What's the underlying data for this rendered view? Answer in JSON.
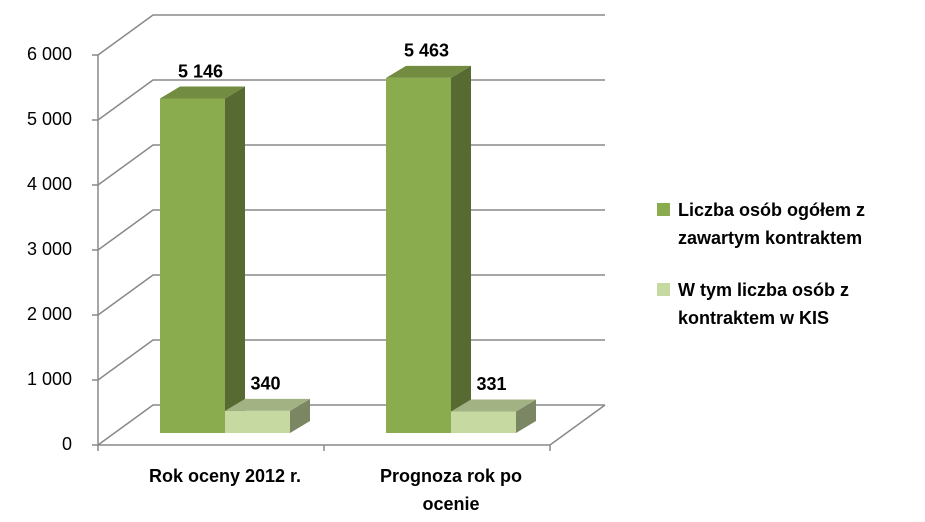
{
  "chart_data": {
    "type": "bar3d",
    "categories": [
      "Rok oceny 2012 r.",
      "Prognoza rok po ocenie"
    ],
    "series": [
      {
        "name": "Liczba osób ogółem z zawartym kontraktem",
        "color": "#8bab4f",
        "values": [
          5146,
          5463
        ],
        "value_labels": [
          "5 146",
          "5 463"
        ]
      },
      {
        "name": "W tym  liczba osób z kontraktem w KIS",
        "color": "#c6d9a0",
        "values": [
          340,
          331
        ],
        "value_labels": [
          "340",
          "331"
        ]
      }
    ],
    "ylim": [
      0,
      6000
    ],
    "yticks": [
      0,
      {
        "value": 1000,
        "label": "1 000"
      },
      {
        "value": 2000,
        "label": "2 000"
      },
      {
        "value": 3000,
        "label": "3 000"
      },
      {
        "value": 4000,
        "label": "4 000"
      },
      {
        "value": 5000,
        "label": "5 000"
      },
      {
        "value": 6000,
        "label": "6 000"
      }
    ],
    "grid": true,
    "legend": "right"
  }
}
